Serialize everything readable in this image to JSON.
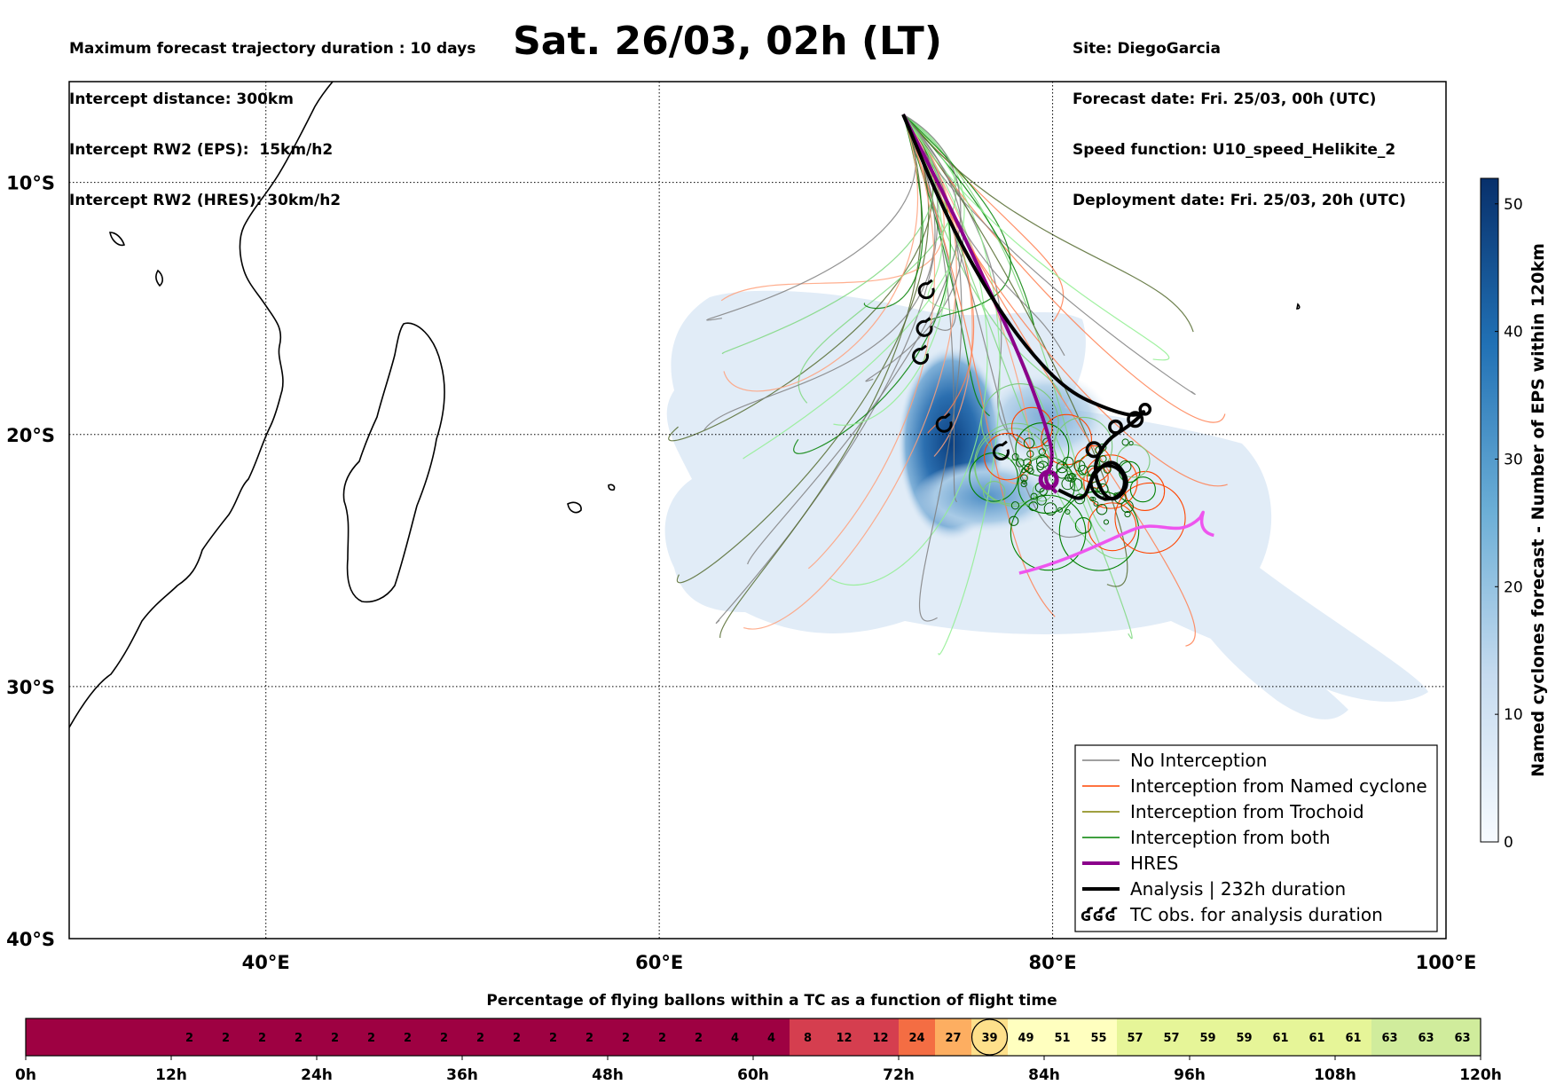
{
  "header": {
    "left": [
      "Maximum forecast trajectory duration : 10 days",
      "Intercept distance: 300km",
      "Intercept RW2 (EPS):  15km/h2",
      "Intercept RW2 (HRES): 30km/h2"
    ],
    "right": [
      "Site: DiegoGarcia",
      "Forecast date: Fri. 25/03, 00h (UTC)",
      "Speed function: U10_speed_Helikite_2",
      "Deployment date: Fri. 25/03, 20h (UTC)"
    ],
    "title": "Sat. 26/03, 02h (LT)"
  },
  "map": {
    "lon_range": [
      30,
      100
    ],
    "lat_range": [
      -40,
      -6
    ],
    "x_ticks": [
      {
        "v": 40,
        "label": "40°E"
      },
      {
        "v": 60,
        "label": "60°E"
      },
      {
        "v": 80,
        "label": "80°E"
      },
      {
        "v": 100,
        "label": "100°E"
      }
    ],
    "y_ticks": [
      {
        "v": -10,
        "label": "10°S"
      },
      {
        "v": -20,
        "label": "20°S"
      },
      {
        "v": -30,
        "label": "30°S"
      },
      {
        "v": -40,
        "label": "40°S"
      }
    ],
    "grid": "dotted",
    "origin": {
      "lon": 72.4,
      "lat": -7.3
    }
  },
  "colorbar": {
    "label": "Named cyclones forecast - Number of EPS within 120km",
    "min": 0,
    "max": 52,
    "ticks": [
      0,
      10,
      20,
      30,
      40,
      50
    ]
  },
  "legend": {
    "placement": "lower-right",
    "items": [
      {
        "label": "No Interception",
        "color": "#808080",
        "kind": "line",
        "width": 1.5
      },
      {
        "label": "Interception from Named cyclone",
        "color": "#ff4500",
        "kind": "line",
        "width": 1.5
      },
      {
        "label": "Interception from Trochoid",
        "color": "#808000",
        "kind": "line",
        "width": 1.5
      },
      {
        "label": "Interception from both",
        "color": "#008000",
        "kind": "line",
        "width": 1.5
      },
      {
        "label": "HRES",
        "color": "#8b008b",
        "kind": "line",
        "width": 4
      },
      {
        "label": "Analysis | 232h duration",
        "color": "#000000",
        "kind": "line",
        "width": 4
      },
      {
        "label": "TC obs. for analysis duration",
        "color": "#000000",
        "kind": "symbol",
        "symbol": "ʛʛʛ"
      }
    ]
  },
  "timeline": {
    "title": "Percentage of flying ballons within a TC as a function of flight time",
    "time_labels": [
      "0h",
      "12h",
      "24h",
      "36h",
      "48h",
      "60h",
      "72h",
      "84h",
      "96h",
      "108h",
      "120h"
    ],
    "values": [
      null,
      null,
      null,
      null,
      2,
      2,
      2,
      2,
      2,
      2,
      2,
      2,
      2,
      2,
      2,
      2,
      2,
      2,
      2,
      4,
      4,
      8,
      12,
      12,
      24,
      27,
      39,
      49,
      51,
      55,
      57,
      57,
      59,
      59,
      61,
      61,
      61,
      63,
      63,
      63
    ],
    "highlight_index": 26,
    "colors": {
      "low": "#9e0142",
      "mid": "#d53e4f",
      "orange": "#f46d43",
      "light_orange": "#fdae61",
      "yellow": "#fee08b",
      "pale_yellow": "#ffffbf",
      "light_green": "#e6f598",
      "green": "#d0ec9c"
    }
  },
  "chart_data": {
    "type": "scatter",
    "title": "Sat. 26/03, 02h (LT)",
    "xlabel": "",
    "ylabel": "",
    "xlim": [
      30,
      100
    ],
    "ylim": [
      -40,
      -6
    ],
    "series": [
      {
        "name": "HRES",
        "points": [
          [
            72.4,
            -7.3
          ],
          [
            74.5,
            -10.5
          ],
          [
            76.5,
            -13.8
          ],
          [
            78.3,
            -16.8
          ],
          [
            79.6,
            -19.5
          ],
          [
            80.1,
            -21.0
          ],
          [
            79.5,
            -21.8
          ],
          [
            80.2,
            -22.3
          ]
        ]
      },
      {
        "name": "Analysis | 232h duration",
        "points": [
          [
            72.4,
            -7.3
          ],
          [
            74.5,
            -11.2
          ],
          [
            76.8,
            -14.5
          ],
          [
            78.8,
            -16.7
          ],
          [
            80.8,
            -18.3
          ],
          [
            82.8,
            -19.0
          ],
          [
            84.2,
            -19.3
          ],
          [
            84.8,
            -19.0
          ],
          [
            84.0,
            -19.6
          ],
          [
            82.6,
            -20.3
          ],
          [
            82.0,
            -21.5
          ],
          [
            82.9,
            -22.8
          ],
          [
            84.0,
            -22.0
          ],
          [
            83.1,
            -20.9
          ],
          [
            82.0,
            -21.6
          ],
          [
            81.6,
            -22.7
          ],
          [
            80.3,
            -22.2
          ]
        ]
      }
    ]
  }
}
